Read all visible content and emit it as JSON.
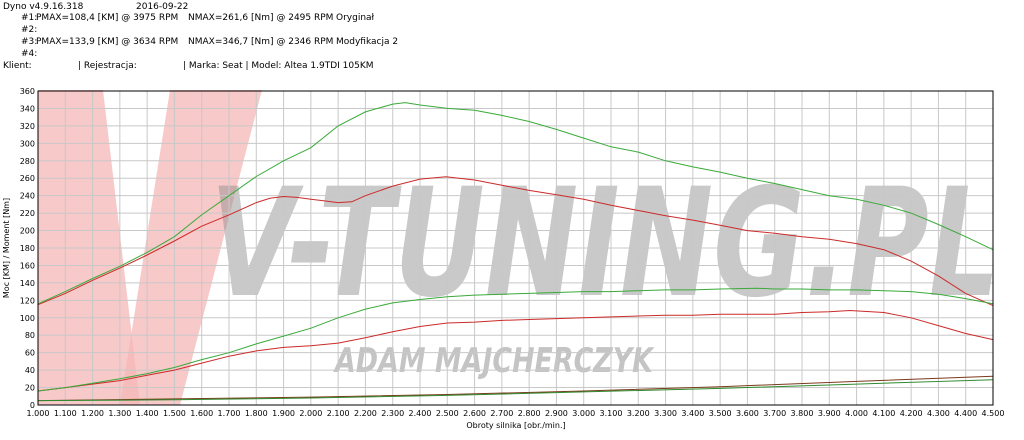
{
  "header": {
    "app_version": "Dyno v4.9.16.318",
    "date": "2016-09-22",
    "runs": [
      {
        "id": "#1:",
        "pmax": "PMAX=108,4 [KM] @ 3975 RPM",
        "nmax": "NMAX=261,6 [Nm] @ 2495 RPM",
        "name": "Oryginał"
      },
      {
        "id": "#2:",
        "pmax": "",
        "nmax": "",
        "name": ""
      },
      {
        "id": "#3:",
        "pmax": "PMAX=133,9 [KM] @ 3634 RPM",
        "nmax": "NMAX=346,7 [Nm] @ 2346 RPM",
        "name": "Modyfikacja 2"
      },
      {
        "id": "#4:",
        "pmax": "",
        "nmax": "",
        "name": ""
      }
    ],
    "klient_label": "Klient:",
    "rejestracja": "| Rejestracja:",
    "marka_model": "| Marka: Seat | Model: Altea 1.9TDI 105KM"
  },
  "watermark": {
    "main": "V-TUNING.PL",
    "sub": "ADAM MAJCHERCZYK"
  },
  "chart_data": {
    "type": "line",
    "xlabel": "Obroty silnika [obr./min.]",
    "ylabel": "Moc [KM] / Moment [Nm]",
    "xlim": [
      1000,
      4500
    ],
    "ylim": [
      0,
      360
    ],
    "x_ticks": [
      "1.000",
      "1.100",
      "1.200",
      "1.300",
      "1.400",
      "1.500",
      "1.600",
      "1.700",
      "1.800",
      "1.900",
      "2.000",
      "2.100",
      "2.200",
      "2.300",
      "2.400",
      "2.500",
      "2.600",
      "2.700",
      "2.800",
      "2.900",
      "3.000",
      "3.100",
      "3.200",
      "3.300",
      "3.400",
      "3.500",
      "3.600",
      "3.700",
      "3.800",
      "3.900",
      "4.000",
      "4.100",
      "4.200",
      "4.300",
      "4.400",
      "4.500"
    ],
    "y_ticks": [
      0,
      20,
      40,
      60,
      80,
      100,
      120,
      140,
      160,
      180,
      200,
      220,
      240,
      260,
      280,
      300,
      320,
      340,
      360
    ],
    "grid": true,
    "colors": {
      "run1": "#cc2a2a",
      "run3": "#3aaa3a",
      "grid": "#c8c8c8"
    },
    "series": [
      {
        "key": "torque_run1",
        "color": "#cc2a2a",
        "x": [
          1000,
          1100,
          1200,
          1300,
          1400,
          1500,
          1600,
          1700,
          1800,
          1850,
          1900,
          1950,
          2000,
          2050,
          2100,
          2150,
          2200,
          2300,
          2400,
          2495,
          2600,
          2700,
          2800,
          2900,
          3000,
          3100,
          3200,
          3300,
          3400,
          3500,
          3600,
          3700,
          3800,
          3900,
          4000,
          4100,
          4200,
          4300,
          4400,
          4500
        ],
        "y": [
          115,
          128,
          143,
          157,
          172,
          188,
          205,
          218,
          232,
          237,
          239,
          238,
          236,
          234,
          232,
          233,
          240,
          251,
          259,
          261.6,
          258,
          252,
          246,
          241,
          236,
          229,
          223,
          217,
          212,
          206,
          200,
          197,
          193,
          190,
          185,
          178,
          165,
          148,
          128,
          114
        ]
      },
      {
        "key": "torque_run3",
        "color": "#3aaa3a",
        "x": [
          1000,
          1100,
          1200,
          1300,
          1400,
          1500,
          1600,
          1700,
          1800,
          1900,
          2000,
          2100,
          2200,
          2300,
          2346,
          2400,
          2500,
          2600,
          2700,
          2800,
          2900,
          3000,
          3100,
          3200,
          3300,
          3400,
          3500,
          3600,
          3700,
          3800,
          3900,
          4000,
          4100,
          4200,
          4300,
          4400,
          4500
        ],
        "y": [
          116,
          130,
          145,
          159,
          175,
          193,
          218,
          240,
          262,
          280,
          295,
          320,
          336,
          345,
          346.7,
          344,
          340,
          338,
          332,
          325,
          316,
          306,
          296,
          290,
          280,
          273,
          267,
          260,
          254,
          247,
          240,
          236,
          229,
          220,
          207,
          193,
          178
        ]
      },
      {
        "key": "power_run1",
        "color": "#cc2a2a",
        "x": [
          1000,
          1100,
          1200,
          1300,
          1400,
          1500,
          1600,
          1700,
          1800,
          1900,
          2000,
          2100,
          2200,
          2300,
          2400,
          2500,
          2600,
          2700,
          2800,
          2900,
          3000,
          3100,
          3200,
          3300,
          3400,
          3500,
          3600,
          3700,
          3800,
          3900,
          3975,
          4100,
          4200,
          4300,
          4400,
          4500
        ],
        "y": [
          16,
          20,
          24,
          28,
          34,
          40,
          48,
          56,
          62,
          66,
          68,
          71,
          77,
          84,
          90,
          94,
          95,
          97,
          98,
          99,
          100,
          101,
          102,
          103,
          103,
          104,
          104,
          104,
          106,
          107,
          108.4,
          106,
          100,
          91,
          82,
          75
        ]
      },
      {
        "key": "power_run3",
        "color": "#3aaa3a",
        "x": [
          1000,
          1100,
          1200,
          1300,
          1400,
          1500,
          1600,
          1700,
          1800,
          1900,
          2000,
          2100,
          2200,
          2300,
          2400,
          2500,
          2600,
          2700,
          2800,
          2900,
          3000,
          3100,
          3200,
          3300,
          3400,
          3500,
          3634,
          3700,
          3800,
          3900,
          4000,
          4100,
          4200,
          4300,
          4400,
          4500
        ],
        "y": [
          16,
          20,
          25,
          30,
          36,
          43,
          52,
          60,
          70,
          79,
          88,
          100,
          110,
          117,
          121,
          124,
          126,
          127,
          128,
          129,
          130,
          130,
          131,
          132,
          132,
          133,
          133.9,
          133,
          133,
          132,
          132,
          131,
          130,
          127,
          122,
          116
        ]
      },
      {
        "key": "loss_run1",
        "color": "#7a3a1a",
        "x": [
          1000,
          1500,
          2000,
          2500,
          3000,
          3500,
          4000,
          4500
        ],
        "y": [
          5,
          7,
          9,
          12,
          16,
          21,
          27,
          33
        ]
      },
      {
        "key": "loss_run3",
        "color": "#2f8a2f",
        "x": [
          1000,
          1500,
          2000,
          2500,
          3000,
          3500,
          4000,
          4500
        ],
        "y": [
          5,
          6,
          8,
          11,
          15,
          19,
          24,
          29
        ]
      }
    ]
  }
}
